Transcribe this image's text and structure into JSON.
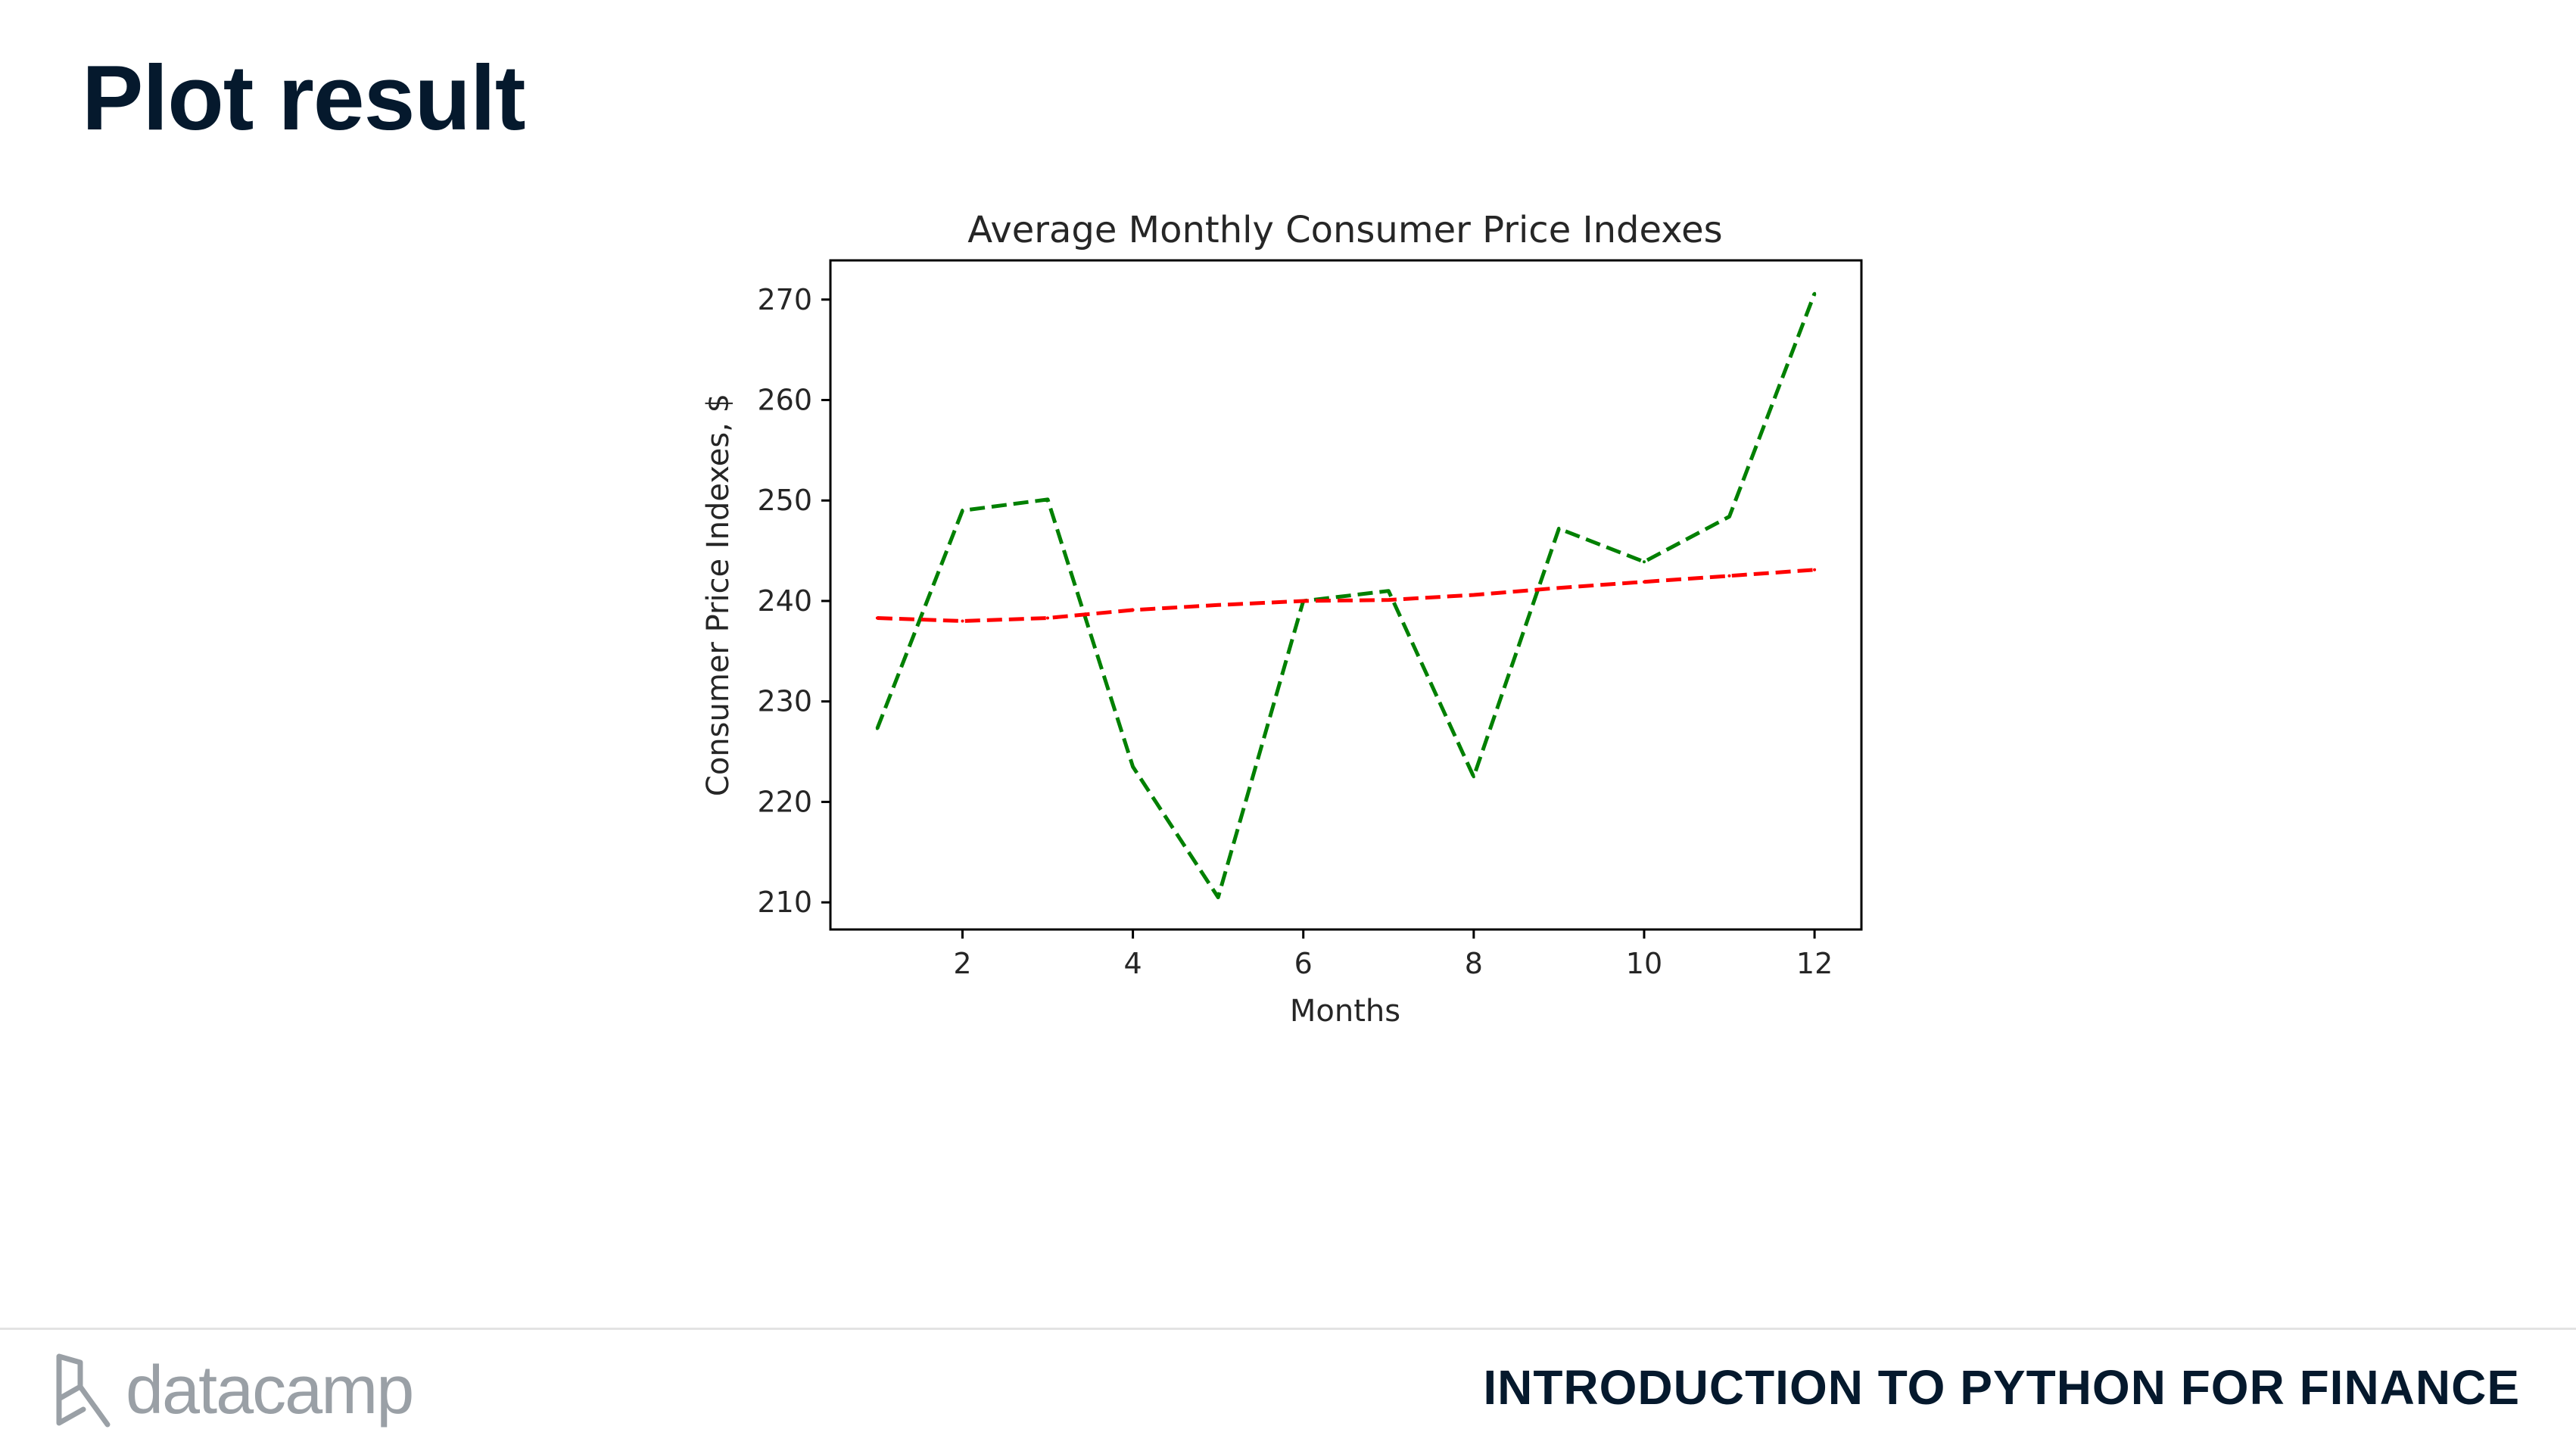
{
  "slide": {
    "title": "Plot result"
  },
  "footer": {
    "brand": "datacamp",
    "course_title": "INTRODUCTION TO PYTHON FOR FINANCE",
    "brand_icon": "datacamp-logo-icon"
  },
  "chart_data": {
    "type": "line",
    "title": "Average Monthly Consumer Price Indexes",
    "xlabel": "Months",
    "ylabel": "Consumer Price Indexes, $",
    "xlim": [
      0.45,
      12.55
    ],
    "ylim": [
      207.3,
      273.9
    ],
    "xticks": [
      2,
      4,
      6,
      8,
      10,
      12
    ],
    "yticks": [
      210,
      220,
      230,
      240,
      250,
      260,
      270
    ],
    "grid": false,
    "legend": "none",
    "x": [
      1,
      2,
      3,
      4,
      5,
      6,
      7,
      8,
      9,
      10,
      11,
      12
    ],
    "series": [
      {
        "color": "#008000",
        "line_style": "dashed",
        "values": [
          227.3,
          249.0,
          250.1,
          223.5,
          210.5,
          240.0,
          241.0,
          222.5,
          247.2,
          243.9,
          248.4,
          270.6
        ]
      },
      {
        "color": "#ff0000",
        "line_style": "dashed",
        "values": [
          238.3,
          238.0,
          238.3,
          239.1,
          239.6,
          240.0,
          240.1,
          240.6,
          241.3,
          241.9,
          242.5,
          243.1
        ]
      }
    ]
  }
}
